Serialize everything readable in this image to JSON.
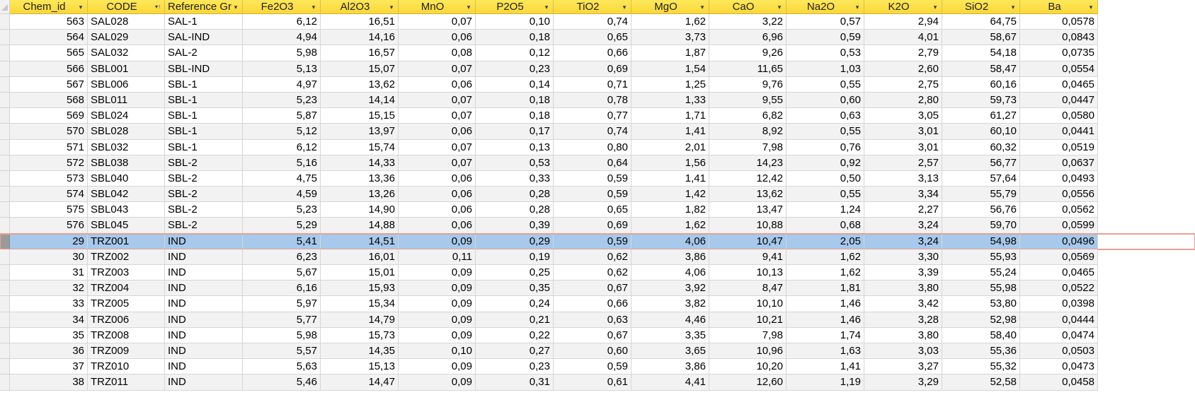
{
  "table": {
    "columns": [
      {
        "label": "Chem_id",
        "align": "center",
        "filter_icon": "dropdown-arrow"
      },
      {
        "label": "CODE",
        "align": "center",
        "filter_icon": "sort-filter"
      },
      {
        "label": "Reference Gr",
        "align": "left",
        "filter_icon": "dropdown-arrow"
      },
      {
        "label": "Fe2O3",
        "align": "center",
        "filter_icon": "dropdown-arrow"
      },
      {
        "label": "Al2O3",
        "align": "center",
        "filter_icon": "dropdown-arrow"
      },
      {
        "label": "MnO",
        "align": "center",
        "filter_icon": "dropdown-arrow"
      },
      {
        "label": "P2O5",
        "align": "center",
        "filter_icon": "dropdown-arrow"
      },
      {
        "label": "TiO2",
        "align": "center",
        "filter_icon": "dropdown-arrow"
      },
      {
        "label": "MgO",
        "align": "center",
        "filter_icon": "dropdown-arrow"
      },
      {
        "label": "CaO",
        "align": "center",
        "filter_icon": "dropdown-arrow"
      },
      {
        "label": "Na2O",
        "align": "center",
        "filter_icon": "dropdown-arrow"
      },
      {
        "label": "K2O",
        "align": "center",
        "filter_icon": "dropdown-arrow"
      },
      {
        "label": "SiO2",
        "align": "center",
        "filter_icon": "dropdown-arrow"
      },
      {
        "label": "Ba",
        "align": "center",
        "filter_icon": "dropdown-arrow"
      }
    ],
    "selected_row_index": 14,
    "rows": [
      [
        "563",
        "SAL028",
        "SAL-1",
        "6,12",
        "16,51",
        "0,07",
        "0,10",
        "0,74",
        "1,62",
        "3,22",
        "0,57",
        "2,94",
        "64,75",
        "0,0578"
      ],
      [
        "564",
        "SAL029",
        "SAL-IND",
        "4,94",
        "14,16",
        "0,06",
        "0,18",
        "0,65",
        "3,73",
        "6,96",
        "0,59",
        "4,01",
        "58,67",
        "0,0843"
      ],
      [
        "565",
        "SAL032",
        "SAL-2",
        "5,98",
        "16,57",
        "0,08",
        "0,12",
        "0,66",
        "1,87",
        "9,26",
        "0,53",
        "2,79",
        "54,18",
        "0,0735"
      ],
      [
        "566",
        "SBL001",
        "SBL-IND",
        "5,13",
        "15,07",
        "0,07",
        "0,23",
        "0,69",
        "1,54",
        "11,65",
        "1,03",
        "2,60",
        "58,47",
        "0,0554"
      ],
      [
        "567",
        "SBL006",
        "SBL-1",
        "4,97",
        "13,62",
        "0,06",
        "0,14",
        "0,71",
        "1,25",
        "9,76",
        "0,55",
        "2,75",
        "60,16",
        "0,0465"
      ],
      [
        "568",
        "SBL011",
        "SBL-1",
        "5,23",
        "14,14",
        "0,07",
        "0,18",
        "0,78",
        "1,33",
        "9,55",
        "0,60",
        "2,80",
        "59,73",
        "0,0447"
      ],
      [
        "569",
        "SBL024",
        "SBL-1",
        "5,87",
        "15,15",
        "0,07",
        "0,18",
        "0,77",
        "1,71",
        "6,82",
        "0,63",
        "3,05",
        "61,27",
        "0,0580"
      ],
      [
        "570",
        "SBL028",
        "SBL-1",
        "5,12",
        "13,97",
        "0,06",
        "0,17",
        "0,74",
        "1,41",
        "8,92",
        "0,55",
        "3,01",
        "60,10",
        "0,0441"
      ],
      [
        "571",
        "SBL032",
        "SBL-1",
        "6,12",
        "15,74",
        "0,07",
        "0,13",
        "0,80",
        "2,01",
        "7,98",
        "0,76",
        "3,01",
        "60,32",
        "0,0519"
      ],
      [
        "572",
        "SBL038",
        "SBL-2",
        "5,16",
        "14,33",
        "0,07",
        "0,53",
        "0,64",
        "1,56",
        "14,23",
        "0,92",
        "2,57",
        "56,77",
        "0,0637"
      ],
      [
        "573",
        "SBL040",
        "SBL-2",
        "4,75",
        "13,36",
        "0,06",
        "0,33",
        "0,59",
        "1,41",
        "12,42",
        "0,50",
        "3,13",
        "57,64",
        "0,0493"
      ],
      [
        "574",
        "SBL042",
        "SBL-2",
        "4,59",
        "13,26",
        "0,06",
        "0,28",
        "0,59",
        "1,42",
        "13,62",
        "0,55",
        "3,34",
        "55,79",
        "0,0556"
      ],
      [
        "575",
        "SBL043",
        "SBL-2",
        "5,23",
        "14,90",
        "0,06",
        "0,28",
        "0,65",
        "1,82",
        "13,47",
        "1,24",
        "2,27",
        "56,76",
        "0,0562"
      ],
      [
        "576",
        "SBL045",
        "SBL-2",
        "5,29",
        "14,88",
        "0,06",
        "0,39",
        "0,69",
        "1,62",
        "10,88",
        "0,68",
        "3,24",
        "59,70",
        "0,0599"
      ],
      [
        "29",
        "TRZ001",
        "IND",
        "5,41",
        "14,51",
        "0,09",
        "0,29",
        "0,59",
        "4,06",
        "10,47",
        "2,05",
        "3,24",
        "54,98",
        "0,0496"
      ],
      [
        "30",
        "TRZ002",
        "IND",
        "6,23",
        "16,01",
        "0,11",
        "0,19",
        "0,62",
        "3,86",
        "9,41",
        "1,62",
        "3,30",
        "55,93",
        "0,0569"
      ],
      [
        "31",
        "TRZ003",
        "IND",
        "5,67",
        "15,01",
        "0,09",
        "0,25",
        "0,62",
        "4,06",
        "10,13",
        "1,62",
        "3,39",
        "55,24",
        "0,0465"
      ],
      [
        "32",
        "TRZ004",
        "IND",
        "6,16",
        "15,93",
        "0,09",
        "0,35",
        "0,67",
        "3,92",
        "8,47",
        "1,81",
        "3,80",
        "55,98",
        "0,0522"
      ],
      [
        "33",
        "TRZ005",
        "IND",
        "5,97",
        "15,34",
        "0,09",
        "0,24",
        "0,66",
        "3,82",
        "10,10",
        "1,46",
        "3,42",
        "53,80",
        "0,0398"
      ],
      [
        "34",
        "TRZ006",
        "IND",
        "5,77",
        "14,79",
        "0,09",
        "0,21",
        "0,63",
        "4,46",
        "10,21",
        "1,46",
        "3,28",
        "52,98",
        "0,0444"
      ],
      [
        "35",
        "TRZ008",
        "IND",
        "5,98",
        "15,73",
        "0,09",
        "0,22",
        "0,67",
        "3,35",
        "7,98",
        "1,74",
        "3,80",
        "58,40",
        "0,0474"
      ],
      [
        "36",
        "TRZ009",
        "IND",
        "5,57",
        "14,35",
        "0,10",
        "0,27",
        "0,60",
        "3,65",
        "10,96",
        "1,63",
        "3,03",
        "55,36",
        "0,0503"
      ],
      [
        "37",
        "TRZ010",
        "IND",
        "5,63",
        "15,13",
        "0,09",
        "0,23",
        "0,59",
        "3,86",
        "10,20",
        "1,41",
        "3,27",
        "55,32",
        "0,0473"
      ],
      [
        "38",
        "TRZ011",
        "IND",
        "5,46",
        "14,47",
        "0,09",
        "0,31",
        "0,61",
        "4,41",
        "12,60",
        "1,19",
        "3,29",
        "52,58",
        "0,0458"
      ]
    ]
  },
  "colors": {
    "header_bg": "#fde44f",
    "selected_row_bg": "#a6c9ec",
    "selected_row_border": "#e8a094",
    "alt_row_bg": "#f2f2f2",
    "grid_line": "#d6d6d6"
  }
}
